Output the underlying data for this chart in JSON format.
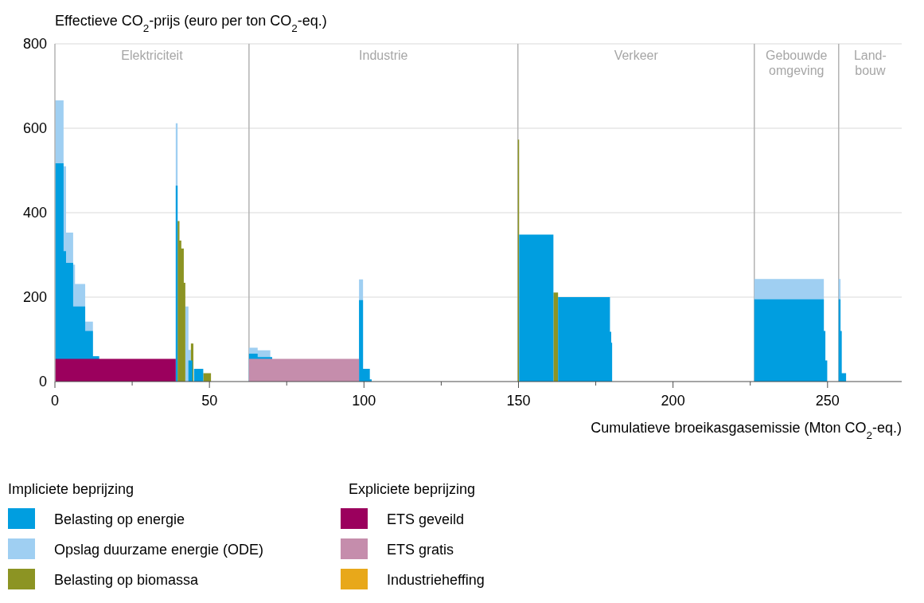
{
  "chart_data": {
    "type": "area",
    "ylabel": "Effectieve CO$_{2}$-prijs (euro per ton CO$_{2}$-eq.)",
    "xlabel": "Cumulatieve broeikasgasemissie (Mton CO$_{2}$-eq.)",
    "xlim": [
      0,
      274
    ],
    "xticks": [
      0,
      {
        "value": 25,
        "label": null
      },
      50,
      {
        "value": 75,
        "label": null
      },
      100,
      {
        "value": 125,
        "label": null
      },
      150,
      {
        "value": 175,
        "label": null
      },
      200,
      {
        "value": 225,
        "label": null
      },
      250
    ],
    "ylim": [
      0,
      800
    ],
    "yticks": [
      0,
      200,
      400,
      600,
      800
    ],
    "grid": "y",
    "legend": "bottom",
    "annotations": [
      "Impliciete beprijzing",
      "Expliciete beprijzing",
      "Elektriciteit",
      "Industrie",
      "Verkeer",
      "Gebouwde\nomgeving",
      "Land-\nbouw"
    ],
    "ref_lines": [
      {
        "axis": "x",
        "value": 62.8,
        "color": "#b3b3b3"
      },
      {
        "axis": "x",
        "value": 149.8,
        "color": "#b3b3b3"
      },
      {
        "axis": "x",
        "value": 226.3,
        "color": "#b3b3b3"
      },
      {
        "axis": "x",
        "value": 253.6,
        "color": "#b3b3b3"
      }
    ],
    "series": [
      {
        "name": "Belasting op energie",
        "color": "#009ee0",
        "x": [
          0,
          2.8,
          3.6,
          5.9,
          9.8,
          12.3,
          14.3,
          39.1,
          39.7,
          43.2,
          44.5,
          45.0,
          48.0,
          62.8,
          65.6,
          70.3,
          98.4,
          99.7,
          101.9,
          102.5,
          150.2,
          161.3,
          162.8,
          179.6,
          180.0,
          180.3,
          226.3,
          248.8,
          249.3,
          249.9,
          253.6,
          254.2,
          254.6,
          256.0
        ],
        "values": [
          517,
          309,
          281,
          178,
          120,
          60,
          0,
          464,
          0,
          50,
          0,
          30,
          0,
          66,
          58,
          0,
          193,
          30,
          5,
          0,
          348,
          0,
          200,
          118,
          92,
          0,
          195,
          120,
          50,
          0,
          195,
          120,
          20,
          0
        ]
      },
      {
        "name": "Opslag duurzame energie (ODE)",
        "color": "#9fcff2",
        "x": [
          0,
          2.8,
          3.6,
          5.9,
          6.5,
          9.8,
          12.3,
          14.3,
          39.1,
          39.7,
          42.2,
          43.2,
          44.0,
          62.8,
          65.6,
          69.7,
          98.4,
          99.7,
          226.3,
          248.8,
          253.6,
          254.2
        ],
        "values": [
          666,
          510,
          353,
          277,
          231,
          142,
          60,
          0,
          612,
          0,
          178,
          75,
          0,
          80,
          74,
          0,
          242,
          0,
          243,
          0,
          243,
          0
        ]
      },
      {
        "name": "Belasting op biomassa",
        "color": "#8c9423",
        "x": [
          39.7,
          40.3,
          40.9,
          41.7,
          42.2,
          44.0,
          44.8,
          48.0,
          50.5,
          149.8,
          150.2,
          161.3,
          162.8
        ],
        "values": [
          380,
          334,
          315,
          234,
          0,
          90,
          0,
          20,
          0,
          573,
          0,
          211,
          0
        ]
      },
      {
        "name": "ETS geveild",
        "color": "#9b005d",
        "x": [
          0,
          39.1
        ],
        "values": [
          54,
          0
        ]
      },
      {
        "name": "ETS gratis",
        "color": "#c58dac",
        "x": [
          62.8,
          98.4
        ],
        "values": [
          54,
          0
        ]
      },
      {
        "name": "Industrieheffing",
        "color": "#e8a81a"
      }
    ]
  }
}
